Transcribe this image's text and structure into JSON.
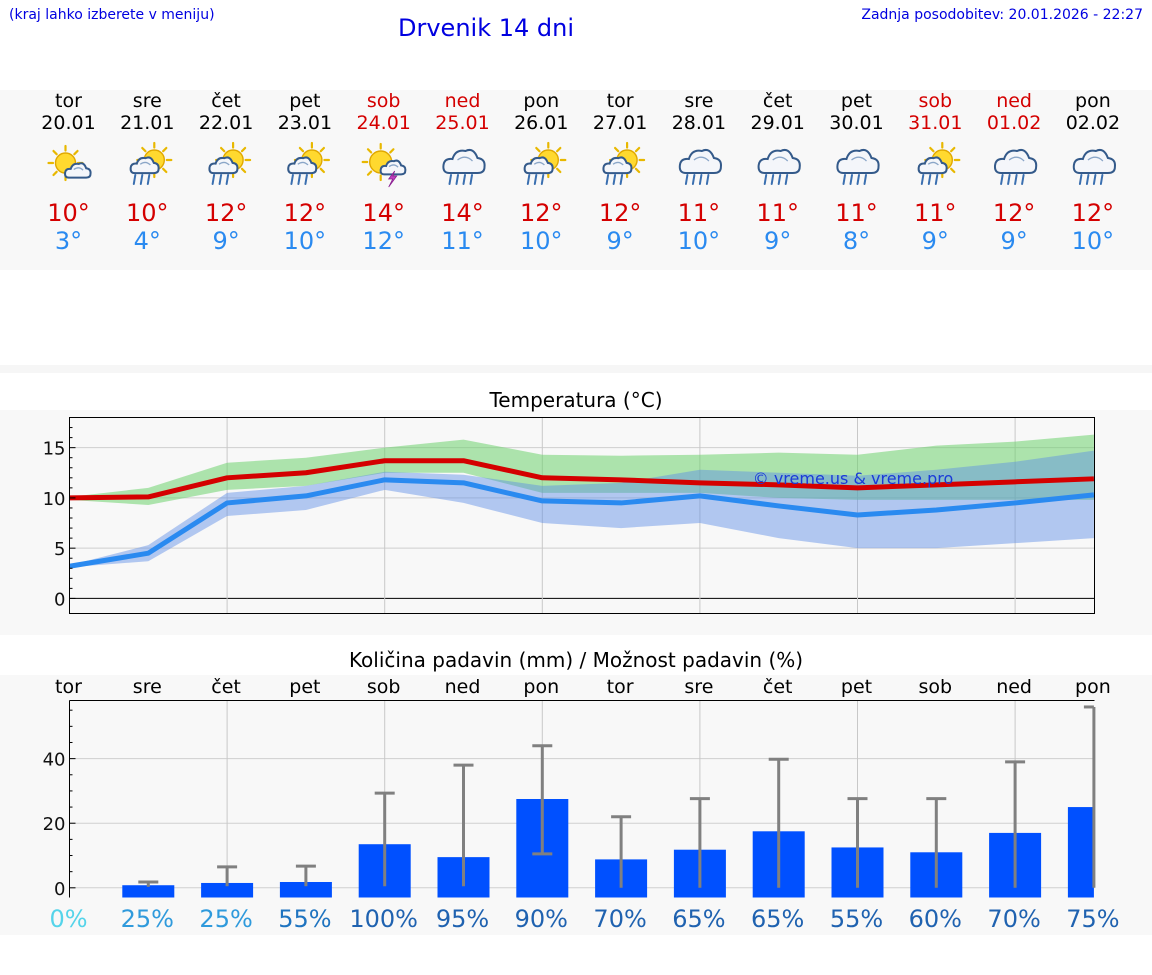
{
  "header": {
    "menu_hint": "(kraj lahko izberete v meniju)",
    "title": "Drvenik 14 dni",
    "last_update": "Zadnja posodobitev: 20.01.2026 - 22:27"
  },
  "colors": {
    "link": "#0000e0",
    "weekend": "#d40000",
    "tmax": "#d40000",
    "tmin": "#2a8af0",
    "bar": "#0050ff",
    "errbar": "#808080"
  },
  "days": [
    {
      "dow": "tor",
      "date": "20.01",
      "weekend": false,
      "icon": "sun-cloud-icon",
      "tmax": "10°",
      "tmin": "3°"
    },
    {
      "dow": "sre",
      "date": "21.01",
      "weekend": false,
      "icon": "sun-cloud-rain-icon",
      "tmax": "10°",
      "tmin": "4°"
    },
    {
      "dow": "čet",
      "date": "22.01",
      "weekend": false,
      "icon": "sun-cloud-rain-icon",
      "tmax": "12°",
      "tmin": "9°"
    },
    {
      "dow": "pet",
      "date": "23.01",
      "weekend": false,
      "icon": "sun-cloud-rain-icon",
      "tmax": "12°",
      "tmin": "10°"
    },
    {
      "dow": "sob",
      "date": "24.01",
      "weekend": true,
      "icon": "sun-storm-icon",
      "tmax": "14°",
      "tmin": "12°"
    },
    {
      "dow": "ned",
      "date": "25.01",
      "weekend": true,
      "icon": "cloud-rain-icon",
      "tmax": "14°",
      "tmin": "11°"
    },
    {
      "dow": "pon",
      "date": "26.01",
      "weekend": false,
      "icon": "sun-cloud-rain-icon",
      "tmax": "12°",
      "tmin": "10°"
    },
    {
      "dow": "tor",
      "date": "27.01",
      "weekend": false,
      "icon": "sun-cloud-rain-icon",
      "tmax": "12°",
      "tmin": "9°"
    },
    {
      "dow": "sre",
      "date": "28.01",
      "weekend": false,
      "icon": "cloud-rain-icon",
      "tmax": "11°",
      "tmin": "10°"
    },
    {
      "dow": "čet",
      "date": "29.01",
      "weekend": false,
      "icon": "cloud-rain-icon",
      "tmax": "11°",
      "tmin": "9°"
    },
    {
      "dow": "pet",
      "date": "30.01",
      "weekend": false,
      "icon": "cloud-rain-icon",
      "tmax": "11°",
      "tmin": "8°"
    },
    {
      "dow": "sob",
      "date": "31.01",
      "weekend": true,
      "icon": "sun-cloud-rain-icon",
      "tmax": "11°",
      "tmin": "9°"
    },
    {
      "dow": "ned",
      "date": "01.02",
      "weekend": true,
      "icon": "cloud-rain-icon",
      "tmax": "12°",
      "tmin": "9°"
    },
    {
      "dow": "pon",
      "date": "02.02",
      "weekend": false,
      "icon": "cloud-rain-icon",
      "tmax": "12°",
      "tmin": "10°"
    }
  ],
  "chart_data": [
    {
      "type": "line",
      "title": "Temperatura (°C)",
      "xlabel": "",
      "ylabel": "",
      "x": [
        0,
        1,
        2,
        3,
        4,
        5,
        6,
        7,
        8,
        9,
        10,
        11,
        12,
        13
      ],
      "ylim": [
        -1.5,
        18
      ],
      "yticks": [
        0,
        5,
        10,
        15
      ],
      "watermark": "© vreme.us & vreme.pro",
      "series": [
        {
          "name": "tmax",
          "values": [
            10,
            10.1,
            12,
            12.5,
            13.7,
            13.7,
            12,
            11.8,
            11.5,
            11.3,
            11,
            11.3,
            11.6,
            11.9
          ]
        },
        {
          "name": "tmin",
          "values": [
            3.2,
            4.5,
            9.5,
            10.2,
            11.8,
            11.5,
            9.7,
            9.5,
            10.2,
            9.2,
            8.3,
            8.8,
            9.5,
            10.3
          ]
        },
        {
          "name": "tmax_band_low",
          "values": [
            9.8,
            9.3,
            10.8,
            11.2,
            12.5,
            12.5,
            10.5,
            10.5,
            10.5,
            10,
            9.8,
            9.8,
            9.8,
            9.8
          ]
        },
        {
          "name": "tmax_band_high",
          "values": [
            10.1,
            11,
            13.5,
            14,
            15,
            15.8,
            14.3,
            14.2,
            14.3,
            14.5,
            14.3,
            15.2,
            15.6,
            16.3
          ]
        },
        {
          "name": "tmin_band_low",
          "values": [
            3.1,
            3.7,
            8.2,
            8.8,
            10.8,
            9.5,
            7.5,
            7,
            7.5,
            6,
            5,
            5,
            5.5,
            6
          ]
        },
        {
          "name": "tmin_band_high",
          "values": [
            3.3,
            5.3,
            10.5,
            11.2,
            12.6,
            12.3,
            11.2,
            11.5,
            12.8,
            12.5,
            12.2,
            12.8,
            13.6,
            14.7
          ]
        }
      ]
    },
    {
      "type": "bar",
      "title": "Količina padavin (mm) / Možnost padavin (%)",
      "xlabel": "",
      "ylabel": "",
      "categories": [
        "tor",
        "sre",
        "čet",
        "pet",
        "sob",
        "ned",
        "pon",
        "tor",
        "sre",
        "čet",
        "pet",
        "sob",
        "ned",
        "pon"
      ],
      "ylim": [
        -3,
        58
      ],
      "yticks": [
        0,
        20,
        40
      ],
      "series": [
        {
          "name": "precip_mm",
          "values": [
            0,
            0.8,
            1.5,
            1.8,
            13.5,
            9.5,
            27.5,
            8.8,
            11.8,
            17.5,
            12.5,
            11,
            17,
            25
          ]
        },
        {
          "name": "precip_low",
          "values": [
            0,
            0.3,
            0.5,
            0.5,
            0.5,
            0.5,
            10.5,
            0,
            0,
            0,
            0,
            0,
            0,
            0
          ]
        },
        {
          "name": "precip_high",
          "values": [
            0,
            1.8,
            6.5,
            6.7,
            29.3,
            38,
            44,
            22,
            27.6,
            39.8,
            27.6,
            27.6,
            39,
            56
          ]
        }
      ],
      "probability_labels": [
        "0%",
        "25%",
        "25%",
        "55%",
        "100%",
        "95%",
        "90%",
        "70%",
        "65%",
        "65%",
        "55%",
        "60%",
        "70%",
        "75%"
      ],
      "probability_colors": [
        "#55d4ea",
        "#2f9adc",
        "#2f9adc",
        "#1f74c0",
        "#1f62b0",
        "#1f62b0",
        "#1f62b0",
        "#1f62b0",
        "#1f62b0",
        "#1f62b0",
        "#1f62b0",
        "#1f62b0",
        "#1f62b0",
        "#1f62b0"
      ]
    }
  ]
}
